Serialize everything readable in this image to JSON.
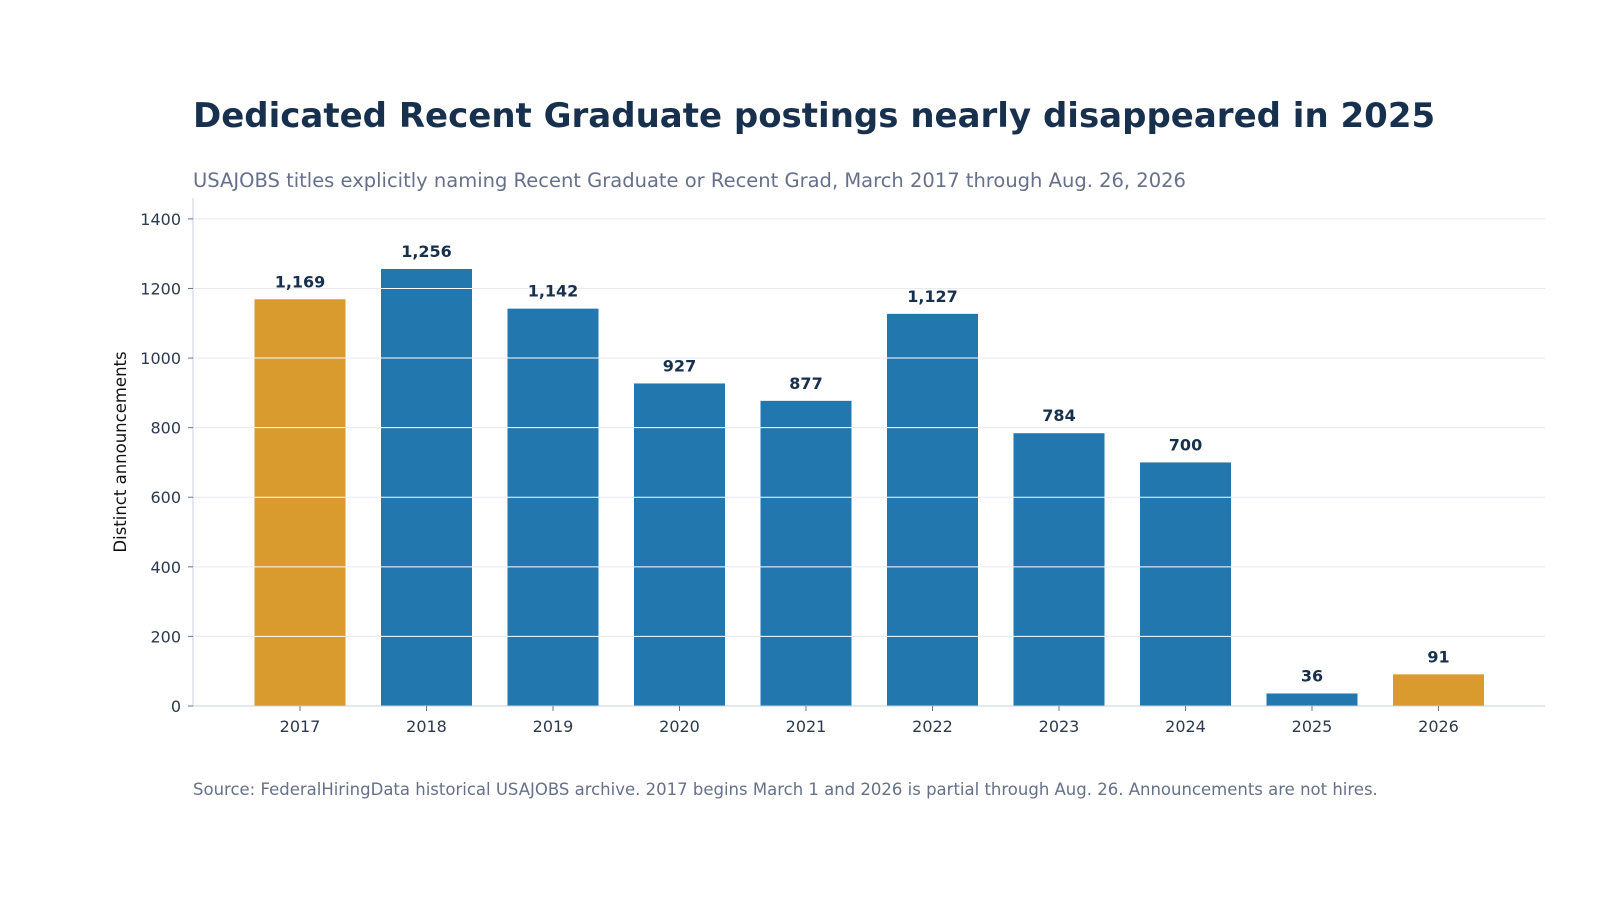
{
  "chart_data": {
    "type": "bar",
    "title": "Dedicated Recent Graduate postings nearly disappeared in 2025",
    "subtitle": "USAJOBS titles explicitly naming Recent Graduate or Recent Grad, March 2017 through Aug. 26, 2026",
    "source": "Source: FederalHiringData historical USAJOBS archive. 2017 begins March 1 and 2026 is partial through Aug. 26. Announcements are not hires.",
    "xlabel": "",
    "ylabel": "Distinct announcements",
    "categories": [
      "2017",
      "2018",
      "2019",
      "2020",
      "2021",
      "2022",
      "2023",
      "2024",
      "2025",
      "2026"
    ],
    "values": [
      1169,
      1256,
      1142,
      927,
      877,
      1127,
      784,
      700,
      36,
      91
    ],
    "value_labels": [
      "1,169",
      "1,256",
      "1,142",
      "927",
      "877",
      "1,127",
      "784",
      "700",
      "36",
      "91"
    ],
    "bar_colors": [
      "#d99a2e",
      "#2177ae",
      "#2177ae",
      "#2177ae",
      "#2177ae",
      "#2177ae",
      "#2177ae",
      "#2177ae",
      "#2177ae",
      "#d99a2e"
    ],
    "ylim": [
      0,
      1460
    ],
    "yticks": [
      0,
      200,
      400,
      600,
      800,
      1000,
      1200,
      1400
    ],
    "grid": true,
    "legend": "none"
  }
}
